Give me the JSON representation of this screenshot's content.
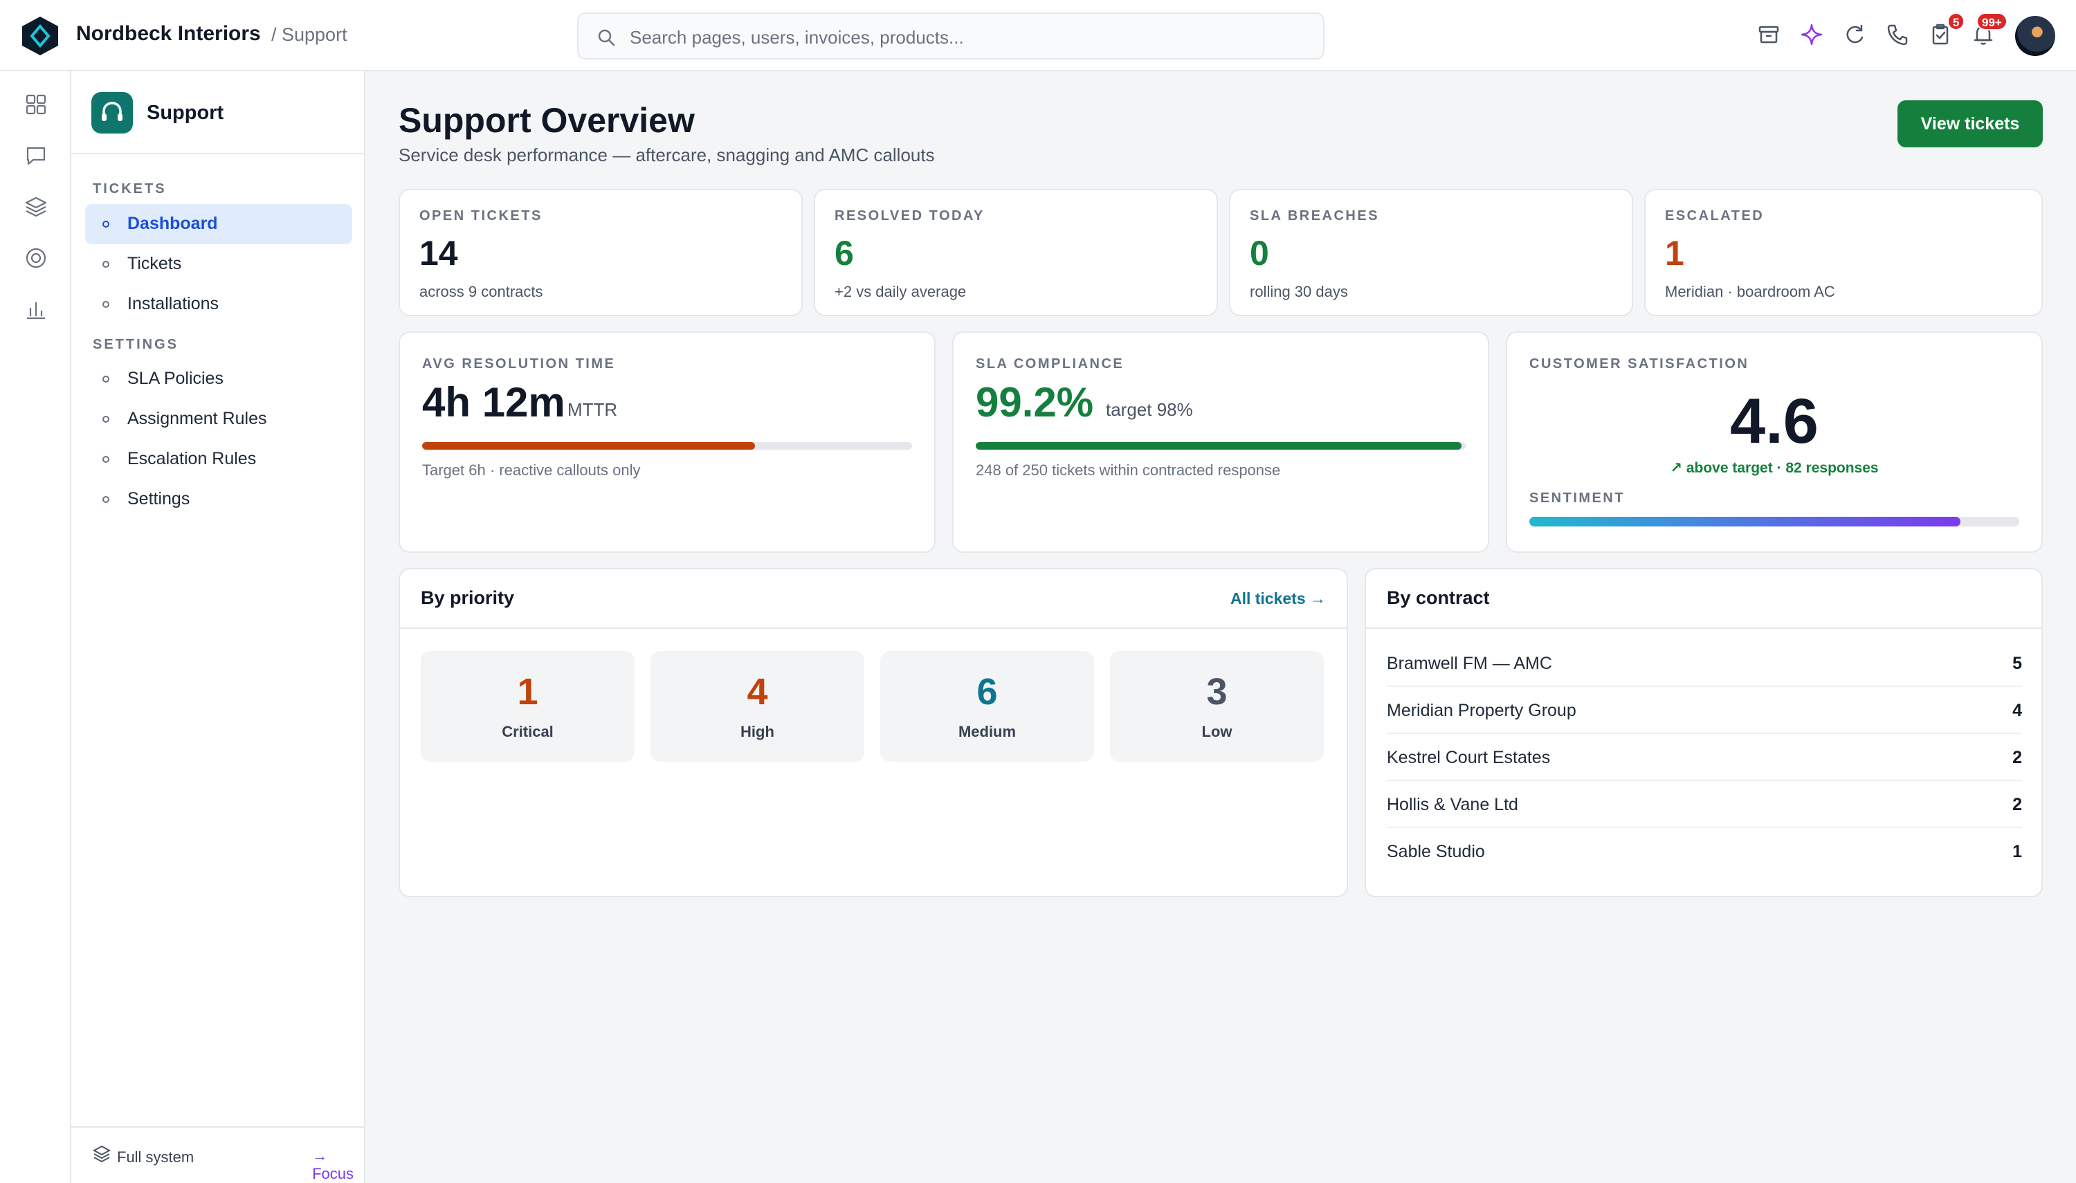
{
  "app": {
    "brand": "Nordbeck Interiors",
    "breadcrumb": "/ Support"
  },
  "search": {
    "placeholder": "Search pages, users, invoices, products..."
  },
  "topbar": {
    "icons": [
      "archive-icon",
      "sparkle-icon",
      "refresh-icon",
      "phone-icon",
      "clipboard-check-icon",
      "bell-icon"
    ],
    "tasks_badge": "5",
    "notifications_badge": "99+"
  },
  "rail": {
    "icons": [
      "grid-icon",
      "chat-icon",
      "layers-icon",
      "target-icon",
      "bar-chart-icon"
    ]
  },
  "sidebar": {
    "title": "Support",
    "sections": [
      {
        "label": "TICKETS",
        "items": [
          "Dashboard",
          "Tickets",
          "Installations"
        ]
      },
      {
        "label": "SETTINGS",
        "items": [
          "SLA Policies",
          "Assignment Rules",
          "Escalation Rules",
          "Settings"
        ]
      }
    ],
    "active_item": "Dashboard",
    "footer": {
      "mode": "Full system",
      "focus": "→ Focus"
    }
  },
  "page": {
    "title": "Support Overview",
    "subtitle": "Service desk performance — aftercare, snagging and AMC callouts",
    "primary_action": "View tickets"
  },
  "kpis": [
    {
      "label": "OPEN TICKETS",
      "value": "14",
      "sub": "across 9 contracts",
      "color": "#111827"
    },
    {
      "label": "RESOLVED TODAY",
      "value": "6",
      "sub": "+2 vs daily average",
      "color": "#15803d"
    },
    {
      "label": "SLA BREACHES",
      "value": "0",
      "sub": "rolling 30 days",
      "color": "#15803d"
    },
    {
      "label": "ESCALATED",
      "value": "1",
      "sub": "Meridian · boardroom AC",
      "color": "#c2410c"
    }
  ],
  "metrics": {
    "resolution": {
      "label": "AVG RESOLUTION TIME",
      "value": "4h 12m",
      "unit": "MTTR",
      "progress": 0.68,
      "color": "#c2410c",
      "note": "Target 6h · reactive callouts only"
    },
    "compliance": {
      "label": "SLA COMPLIANCE",
      "value": "99.2%",
      "unit": "target 98%",
      "progress": 0.992,
      "color": "#15803d",
      "note": "248 of 250 tickets within contracted response"
    },
    "satisfaction": {
      "label": "CUSTOMER SATISFACTION",
      "value": "4.6",
      "trend": "↗ above target · 82 responses",
      "sentiment_label": "SENTIMENT",
      "sentiment": 0.88
    }
  },
  "by_priority": {
    "title": "By priority",
    "link": "All tickets →",
    "items": [
      {
        "value": "1",
        "label": "Critical",
        "color": "#c2410c"
      },
      {
        "value": "4",
        "label": "High",
        "color": "#c2410c"
      },
      {
        "value": "6",
        "label": "Medium",
        "color": "#0e7490"
      },
      {
        "value": "3",
        "label": "Low",
        "color": "#4b5563"
      }
    ]
  },
  "by_contract": {
    "title": "By contract",
    "rows": [
      {
        "name": "Bramwell FM — AMC",
        "count": "5"
      },
      {
        "name": "Meridian Property Group",
        "count": "4"
      },
      {
        "name": "Kestrel Court Estates",
        "count": "2"
      },
      {
        "name": "Hollis & Vane Ltd",
        "count": "2"
      },
      {
        "name": "Sable Studio",
        "count": "1"
      }
    ]
  }
}
